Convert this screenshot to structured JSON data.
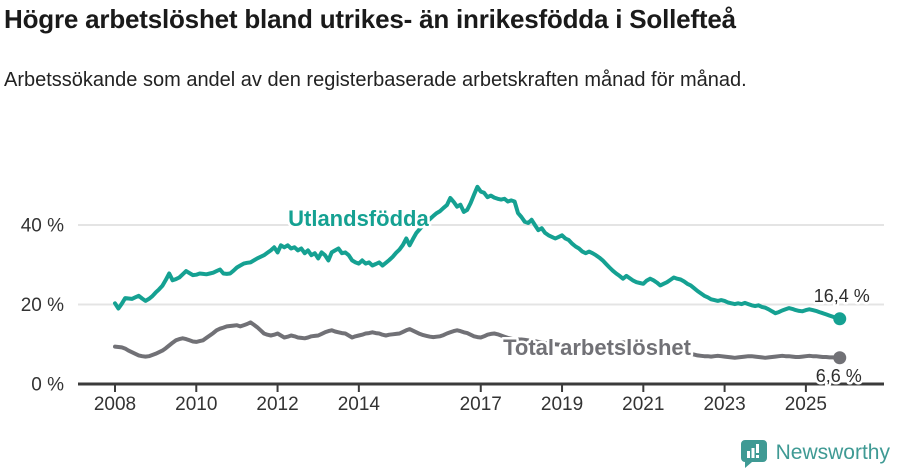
{
  "header": {
    "title": "Högre arbetslöshet bland utrikes- än inrikesfödda i Sollefteå",
    "subtitle": "Arbetssökande som andel av den registerbaserade arbetskraften månad för månad."
  },
  "branding": {
    "logo_text": "Newsworthy"
  },
  "colors": {
    "accent_teal": "#15a192",
    "series_gray": "#717176",
    "axis": "#3b3b3b",
    "tick_text": "#333333",
    "grid": "#e4e4e4",
    "value_label_text": "#2e2e2e",
    "logo_teal": "#3f9a94"
  },
  "chart_data": {
    "type": "line",
    "title": "Högre arbetslöshet bland utrikes- än inrikesfödda i Sollefteå",
    "subtitle": "Arbetssökande som andel av den registerbaserade arbetskraften månad för månad.",
    "unit": "%",
    "x_start_year": 2008,
    "x_step_months": 1,
    "xlim": [
      2008,
      2025.92
    ],
    "ylim": [
      0,
      52
    ],
    "yticks": [
      0,
      20,
      40
    ],
    "ytick_label_suffix": " %",
    "xticks": [
      2008,
      2010,
      2012,
      2014,
      2017,
      2019,
      2021,
      2023,
      2025
    ],
    "grid": "horizontal",
    "legend_position": "inline-labels",
    "series": [
      {
        "name": "Utlandsfödda",
        "color": "#15a192",
        "end_value_label": "16,4 %",
        "end_value": 16.4,
        "label_pos": {
          "x": 2012.26,
          "y": 39.7
        },
        "values": [
          20.3,
          19.0,
          20.2,
          21.6,
          21.5,
          21.4,
          21.8,
          22.2,
          21.5,
          20.9,
          21.4,
          22.1,
          23.0,
          23.8,
          24.7,
          26.2,
          27.8,
          26.1,
          26.4,
          26.8,
          27.6,
          28.4,
          27.9,
          27.4,
          27.5,
          27.8,
          27.7,
          27.6,
          27.8,
          28.0,
          28.4,
          28.8,
          27.8,
          27.7,
          27.8,
          28.5,
          29.3,
          29.8,
          30.3,
          30.5,
          30.6,
          31.1,
          31.6,
          32.0,
          32.4,
          33.0,
          33.6,
          34.4,
          33.1,
          34.9,
          34.4,
          34.9,
          34.1,
          34.4,
          33.6,
          34.1,
          32.9,
          33.6,
          32.4,
          32.9,
          31.6,
          33.1,
          32.4,
          31.1,
          33.1,
          33.6,
          34.1,
          32.9,
          33.1,
          32.4,
          31.1,
          30.6,
          30.3,
          31.1,
          30.3,
          30.6,
          29.8,
          30.2,
          30.6,
          29.8,
          30.5,
          31.2,
          32.0,
          33.0,
          33.8,
          35.0,
          36.6,
          34.9,
          36.5,
          38.0,
          39.0,
          40.0,
          40.8,
          41.5,
          42.3,
          43.0,
          43.5,
          44.3,
          45.0,
          46.8,
          45.8,
          44.6,
          45.1,
          43.3,
          43.8,
          45.5,
          47.6,
          49.6,
          48.4,
          48.1,
          47.0,
          47.4,
          46.9,
          46.6,
          46.4,
          46.6,
          45.9,
          46.2,
          45.9,
          43.0,
          42.0,
          40.8,
          40.5,
          41.3,
          40.0,
          38.7,
          39.2,
          38.0,
          37.4,
          37.0,
          36.6,
          37.0,
          37.4,
          36.6,
          36.2,
          35.3,
          34.6,
          34.1,
          33.3,
          32.9,
          33.3,
          32.9,
          32.4,
          31.8,
          31.1,
          30.2,
          29.3,
          28.5,
          27.8,
          27.2,
          26.5,
          27.2,
          26.6,
          26.0,
          25.6,
          25.4,
          25.2,
          26.0,
          26.5,
          26.1,
          25.5,
          24.8,
          25.2,
          25.6,
          26.2,
          26.8,
          26.5,
          26.3,
          25.8,
          25.2,
          24.8,
          24.1,
          23.4,
          22.8,
          22.2,
          21.8,
          21.3,
          21.1,
          20.9,
          21.1,
          20.9,
          20.5,
          20.3,
          20.1,
          20.3,
          20.1,
          20.4,
          20.1,
          19.8,
          19.6,
          19.8,
          19.4,
          19.2,
          18.8,
          18.3,
          17.8,
          18.1,
          18.5,
          18.8,
          19.1,
          18.9,
          18.6,
          18.4,
          18.3,
          18.6,
          18.8,
          18.6,
          18.4,
          18.1,
          17.8,
          17.5,
          17.2,
          16.9,
          16.6,
          16.4
        ]
      },
      {
        "name": "Total arbetslöshet",
        "color": "#717176",
        "end_value_label": "6,6 %",
        "end_value": 6.6,
        "label_pos": {
          "x": 2017.55,
          "y": 7.3
        },
        "values": [
          9.4,
          9.3,
          9.2,
          8.9,
          8.4,
          8.0,
          7.6,
          7.2,
          7.0,
          6.9,
          7.0,
          7.3,
          7.6,
          8.0,
          8.4,
          9.0,
          9.7,
          10.4,
          11.0,
          11.3,
          11.5,
          11.3,
          11.0,
          10.7,
          10.6,
          10.8,
          11.0,
          11.6,
          12.2,
          12.8,
          13.5,
          13.9,
          14.2,
          14.5,
          14.6,
          14.7,
          14.8,
          14.5,
          14.8,
          15.1,
          15.5,
          14.9,
          14.3,
          13.5,
          12.7,
          12.4,
          12.2,
          12.4,
          12.7,
          12.2,
          11.7,
          11.9,
          12.2,
          12.0,
          11.7,
          11.6,
          11.5,
          11.7,
          12.0,
          12.1,
          12.2,
          12.6,
          13.0,
          13.3,
          13.5,
          13.2,
          13.0,
          12.8,
          12.7,
          12.2,
          11.7,
          12.0,
          12.2,
          12.4,
          12.7,
          12.8,
          13.0,
          12.8,
          12.7,
          12.4,
          12.2,
          12.4,
          12.5,
          12.6,
          12.7,
          13.1,
          13.5,
          13.8,
          13.4,
          13.0,
          12.6,
          12.3,
          12.1,
          11.9,
          11.8,
          11.9,
          12.0,
          12.3,
          12.7,
          13.0,
          13.3,
          13.5,
          13.3,
          13.0,
          12.8,
          12.4,
          12.0,
          11.8,
          11.7,
          12.0,
          12.4,
          12.6,
          12.7,
          12.5,
          12.2,
          11.9,
          11.6,
          11.4,
          11.2,
          11.2,
          11.2,
          11.1,
          11.0,
          10.9,
          10.8,
          10.6,
          10.5,
          10.3,
          10.2,
          10.1,
          10.0,
          9.9,
          9.8,
          9.7,
          9.6,
          9.5,
          9.5,
          9.4,
          9.4,
          9.3,
          9.3,
          9.2,
          9.2,
          9.2,
          9.3,
          9.5,
          9.8,
          10.0,
          10.2,
          10.4,
          10.5,
          10.4,
          10.3,
          10.1,
          10.0,
          9.8,
          9.6,
          9.5,
          9.4,
          9.3,
          9.2,
          9.0,
          8.9,
          8.7,
          8.6,
          8.4,
          8.3,
          8.1,
          7.9,
          7.7,
          7.6,
          7.4,
          7.2,
          7.1,
          7.0,
          7.0,
          6.9,
          7.0,
          7.1,
          7.0,
          6.9,
          6.8,
          6.7,
          6.6,
          6.7,
          6.8,
          6.9,
          7.0,
          7.0,
          6.9,
          6.8,
          6.7,
          6.6,
          6.7,
          6.8,
          6.9,
          7.0,
          7.1,
          7.0,
          7.0,
          6.9,
          6.8,
          6.8,
          6.9,
          7.0,
          7.1,
          7.0,
          7.0,
          6.9,
          6.8,
          6.8,
          6.7,
          6.7,
          6.6,
          6.6
        ]
      }
    ]
  }
}
